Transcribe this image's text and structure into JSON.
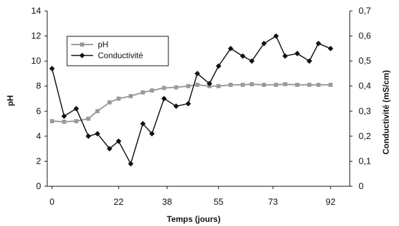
{
  "chart_data": {
    "type": "line",
    "xlabel": "Temps (jours)",
    "ylabel": "pH",
    "y2label": "Conductivité (mS/cm)",
    "xtick_labels": [
      "0",
      "22",
      "38",
      "55",
      "73",
      "92"
    ],
    "ylim": [
      0,
      14
    ],
    "yticks": [
      "0",
      "2",
      "4",
      "6",
      "8",
      "10",
      "12",
      "14"
    ],
    "y2lim": [
      0,
      0.7
    ],
    "y2ticks": [
      "0",
      "0,1",
      "0,2",
      "0,3",
      "0,4",
      "0,5",
      "0,6",
      "0,7"
    ],
    "grid": false,
    "legend_position": "top-left",
    "series": [
      {
        "name": "pH",
        "axis": "left",
        "color": "#9a9a9a",
        "marker": "square",
        "x": [
          0,
          4,
          8,
          12,
          15,
          19,
          22,
          26,
          30,
          33,
          37,
          41,
          45,
          48,
          52,
          55,
          59,
          63,
          66,
          70,
          74,
          77,
          81,
          85,
          88,
          92
        ],
        "values": [
          5.2,
          5.15,
          5.2,
          5.4,
          6.0,
          6.7,
          7.0,
          7.2,
          7.5,
          7.65,
          7.85,
          7.9,
          8.0,
          8.1,
          8.0,
          8.0,
          8.1,
          8.1,
          8.15,
          8.1,
          8.1,
          8.15,
          8.1,
          8.1,
          8.1,
          8.1
        ]
      },
      {
        "name": "Conductivité",
        "axis": "right",
        "color": "#111111",
        "marker": "diamond",
        "x": [
          0,
          4,
          8,
          12,
          15,
          19,
          22,
          26,
          30,
          33,
          37,
          41,
          45,
          48,
          52,
          55,
          59,
          63,
          66,
          70,
          74,
          77,
          81,
          85,
          88,
          92
        ],
        "values": [
          0.47,
          0.28,
          0.31,
          0.2,
          0.21,
          0.15,
          0.18,
          0.09,
          0.25,
          0.21,
          0.35,
          0.32,
          0.33,
          0.45,
          0.41,
          0.48,
          0.55,
          0.52,
          0.5,
          0.57,
          0.6,
          0.52,
          0.53,
          0.5,
          0.57,
          0.55
        ]
      }
    ]
  }
}
